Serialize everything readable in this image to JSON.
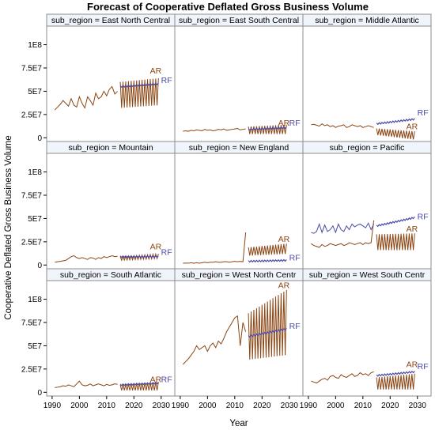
{
  "chart_data": {
    "type": "line",
    "title": "Forecast of Cooperative Deflated Gross Business Volume",
    "xlabel": "Year",
    "ylabel": "Cooperative Deflated Gross Business Volume",
    "xlim": [
      1988,
      2035
    ],
    "ylim": [
      -4000000,
      120000000
    ],
    "x_ticks": [
      "1990",
      "2000",
      "2010",
      "2020",
      "2030"
    ],
    "x_tick_values": [
      1990,
      2000,
      2010,
      2020,
      2030
    ],
    "y_ticks": [
      "0",
      "2.5E7",
      "5E7",
      "7.5E7",
      "1E8"
    ],
    "y_tick_values": [
      0,
      25000000,
      50000000,
      75000000,
      100000000
    ],
    "colors": {
      "AR": "#8b4513",
      "RF": "#4a4aa8",
      "history": "#555555",
      "frame": "#8c8c8c",
      "strip": "#f0f4fb"
    },
    "panels": [
      {
        "strip": "sub_region = East North Central",
        "history": [
          30,
          33,
          36,
          40,
          37,
          34,
          42,
          35,
          33,
          44,
          37,
          32,
          44,
          40,
          35,
          48,
          42,
          44,
          50,
          45,
          52,
          55,
          47,
          50
        ],
        "ar": {
          "low": 32,
          "high": 60,
          "end_low": 35,
          "end_high": 64
        },
        "rf": {
          "start": 55,
          "end": 58
        },
        "labels": {
          "AR": "AR",
          "RF": "RF"
        },
        "label_y": {
          "AR": 69,
          "RF": 59
        }
      },
      {
        "strip": "sub_region = East South Central",
        "history": [
          7,
          7.5,
          7,
          8,
          7.5,
          8.5,
          8,
          7.5,
          9,
          8,
          8.5,
          7.5,
          8,
          9,
          8.5,
          9.5,
          8,
          8.5,
          9,
          9.5,
          10,
          8.5,
          9,
          9.5
        ],
        "ar": {
          "low": 4,
          "high": 12,
          "end_low": 4,
          "end_high": 14
        },
        "rf": {
          "start": 9,
          "end": 11
        },
        "labels": {
          "AR": "AR",
          "RF": "RF"
        },
        "label_y": {
          "AR": 13,
          "RF": 13
        }
      },
      {
        "strip": "sub_region = Middle Atlantic",
        "history": [
          14,
          14.5,
          13.5,
          12.5,
          15,
          13,
          14,
          12,
          13,
          11,
          12.5,
          13,
          14,
          11,
          12,
          14,
          13,
          12,
          13,
          11,
          12,
          13,
          12,
          11
        ],
        "ar": {
          "low": 3,
          "high": 10,
          "end_low": -2,
          "end_high": 7
        },
        "rf": {
          "start": 15,
          "end": 20
        },
        "labels": {
          "AR": "AR",
          "RF": "RF"
        },
        "label_y": {
          "AR": 9,
          "RF": 24
        }
      },
      {
        "strip": "sub_region = Mountain",
        "history": [
          3,
          3.5,
          4,
          4.5,
          5,
          7,
          9,
          10,
          8,
          7,
          8,
          7,
          6,
          8,
          7.5,
          6,
          8,
          7,
          9,
          8,
          9,
          10,
          9,
          9.5
        ],
        "ar": {
          "low": 5,
          "high": 9,
          "end_low": 7,
          "end_high": 12
        },
        "rf": {
          "start": 9,
          "end": 9
        },
        "labels": {
          "AR": "AR",
          "RF": "RF"
        },
        "label_y": {
          "AR": 17,
          "RF": 11
        }
      },
      {
        "strip": "sub_region = New England",
        "history": [
          2,
          2,
          2,
          2.5,
          2,
          2.5,
          2,
          2.5,
          3,
          2.5,
          3,
          3,
          3.5,
          3,
          3,
          3.5,
          3.5,
          3,
          3.5,
          4,
          3.5,
          4,
          3.5,
          35
        ],
        "ar": {
          "low": 10,
          "high": 19,
          "end_low": 12,
          "end_high": 23
        },
        "rf": {
          "start": 4,
          "end": 5
        },
        "labels": {
          "AR": "AR",
          "RF": "RF"
        },
        "label_y": {
          "AR": 25,
          "RF": 5
        }
      },
      {
        "strip": "sub_region = Pacific",
        "history": [
          23,
          21,
          20,
          19,
          22,
          20,
          21,
          23,
          22,
          21,
          22,
          23,
          21,
          22,
          24,
          23,
          22,
          23,
          24,
          22,
          24,
          23,
          24,
          48
        ],
        "history_rf": [
          35,
          34,
          36,
          44,
          35,
          43,
          36,
          38,
          42,
          35,
          44,
          38,
          36,
          42,
          38,
          44,
          41,
          43,
          44,
          42,
          40,
          45,
          38,
          44
        ],
        "ar": {
          "low": 16,
          "high": 33,
          "end_low": 16,
          "end_high": 34
        },
        "rf": {
          "start": 42,
          "end": 51
        },
        "labels": {
          "AR": "AR",
          "RF": "RF"
        },
        "label_y": {
          "AR": 36,
          "RF": 49
        }
      },
      {
        "strip": "sub_region = South Atlantic",
        "history": [
          5,
          5.5,
          6,
          7,
          6.5,
          8,
          7,
          6,
          9,
          12,
          8,
          7,
          7.5,
          9,
          7,
          8,
          9,
          8,
          7,
          8.5,
          7.5,
          8,
          9,
          8.5
        ],
        "ar": {
          "low": 2,
          "high": 8,
          "end_low": 2,
          "end_high": 11
        },
        "rf": {
          "start": 8,
          "end": 10
        },
        "labels": {
          "AR": "AR",
          "RF": "RF"
        },
        "label_y": {
          "AR": 11,
          "RF": 11
        }
      },
      {
        "strip": "sub_region = West North Centr",
        "history": [
          30,
          33,
          36,
          40,
          44,
          50,
          46,
          48,
          50,
          44,
          50,
          53,
          48,
          55,
          52,
          58,
          65,
          70,
          75,
          80,
          82,
          50,
          75,
          65
        ],
        "ar": {
          "low": 35,
          "high": 85,
          "end_low": 40,
          "end_high": 110
        },
        "rf": {
          "start": 60,
          "end": 68
        },
        "labels": {
          "AR": "AR",
          "RF": "RF"
        },
        "label_y": {
          "AR": 112,
          "RF": 68
        }
      },
      {
        "strip": "sub_region = West South Centr",
        "history": [
          12,
          11,
          10,
          12,
          14,
          15,
          13,
          17,
          18,
          16,
          15,
          19,
          17,
          16,
          18,
          20,
          17,
          18,
          21,
          19,
          20,
          18,
          21,
          22
        ],
        "ar": {
          "low": 3,
          "high": 16,
          "end_low": 3,
          "end_high": 20
        },
        "rf": {
          "start": 18,
          "end": 22
        },
        "labels": {
          "AR": "AR",
          "RF": "RF"
        },
        "label_y": {
          "AR": 27,
          "RF": 25
        }
      }
    ]
  }
}
